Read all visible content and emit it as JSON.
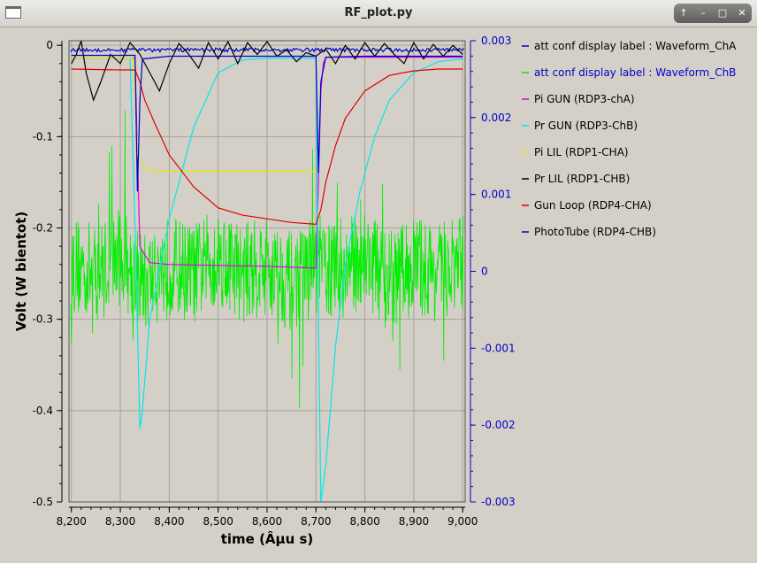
{
  "window": {
    "title": "RF_plot.py",
    "buttons": [
      "↑",
      "–",
      "□",
      "✕"
    ]
  },
  "chart_data": {
    "type": "line",
    "title": "",
    "xlabel": "time (Âµu s)",
    "ylabel": "Volt (W bientot)",
    "xlim": [
      8195,
      9005
    ],
    "ylim": [
      -0.5,
      0.005
    ],
    "y2lim": [
      -0.003,
      0.003
    ],
    "x_ticks": [
      8200,
      8300,
      8400,
      8500,
      8600,
      8700,
      8800,
      8900,
      9000
    ],
    "x_tick_labels": [
      "8,200",
      "8,300",
      "8,400",
      "8,500",
      "8,600",
      "8,700",
      "8,800",
      "8,900",
      "9,000"
    ],
    "y_ticks": [
      0,
      -0.1,
      -0.2,
      -0.3,
      -0.4,
      -0.5
    ],
    "y_tick_labels": [
      "0",
      "-0.1",
      "-0.2",
      "-0.3",
      "-0.4",
      "-0.5"
    ],
    "y2_ticks": [
      0.003,
      0.002,
      0.001,
      0,
      -0.001,
      -0.002,
      -0.003
    ],
    "y2_tick_labels": [
      "0.003",
      "0.002",
      "0.001",
      "0",
      "-0.001",
      "-0.002",
      "-0.003"
    ],
    "grid": true,
    "legend_position": "right",
    "series": [
      {
        "name": "att conf display label : Waveform_ChA",
        "color": "#0000c8",
        "axis": "right",
        "x": [
          8200,
          8300,
          8400,
          8500,
          8600,
          8700,
          8800,
          8900,
          9000
        ],
        "y": [
          0.00288,
          0.00289,
          0.00288,
          0.00289,
          0.00288,
          0.00289,
          0.00288,
          0.00289,
          0.00288
        ]
      },
      {
        "name": "att conf display label : Waveform_ChB",
        "color": "#00ee00",
        "axis": "left",
        "x": [
          8200,
          8250,
          8300,
          8350,
          8400,
          8450,
          8500,
          8550,
          8600,
          8650,
          8700,
          8750,
          8800,
          8850,
          8900,
          8950,
          9000
        ],
        "y": [
          -0.24,
          -0.25,
          -0.23,
          -0.26,
          -0.24,
          -0.25,
          -0.23,
          -0.25,
          -0.24,
          -0.26,
          -0.24,
          -0.25,
          -0.23,
          -0.26,
          -0.24,
          -0.25,
          -0.24
        ]
      },
      {
        "name": "Pi GUN (RDP3-chA)",
        "color": "#e000e0",
        "axis": "left",
        "x": [
          8200,
          8330,
          8335,
          8340,
          8345,
          8360,
          8400,
          8500,
          8600,
          8700,
          8705,
          8710,
          8715,
          8720,
          8800,
          9000
        ],
        "y": [
          -0.014,
          -0.014,
          -0.12,
          -0.22,
          -0.225,
          -0.238,
          -0.24,
          -0.241,
          -0.242,
          -0.244,
          -0.15,
          -0.05,
          -0.02,
          -0.013,
          -0.013,
          -0.013
        ]
      },
      {
        "name": "Pr GUN (RDP3-ChB)",
        "color": "#00e8e8",
        "axis": "left",
        "x": [
          8200,
          8320,
          8330,
          8340,
          8345,
          8360,
          8400,
          8450,
          8500,
          8550,
          8600,
          8650,
          8700,
          8705,
          8710,
          8720,
          8740,
          8760,
          8790,
          8820,
          8850,
          8900,
          8950,
          9000
        ],
        "y": [
          -0.014,
          -0.014,
          -0.2,
          -0.42,
          -0.4,
          -0.3,
          -0.19,
          -0.09,
          -0.03,
          -0.016,
          -0.014,
          -0.014,
          -0.014,
          -0.3,
          -0.5,
          -0.46,
          -0.33,
          -0.24,
          -0.16,
          -0.1,
          -0.06,
          -0.03,
          -0.018,
          -0.015
        ]
      },
      {
        "name": "Pi LIL (RDP1-CHA)",
        "color": "#e8e800",
        "axis": "left",
        "x": [
          8200,
          8325,
          8330,
          8335,
          8345,
          8360,
          8400,
          8500,
          8600,
          8650,
          8700
        ],
        "y": [
          -0.014,
          -0.014,
          -0.05,
          -0.12,
          -0.132,
          -0.137,
          -0.138,
          -0.138,
          -0.138,
          -0.138,
          -0.138
        ]
      },
      {
        "name": "Pr LIL (RDP1-CHB)",
        "color": "#000000",
        "axis": "left",
        "x": [
          8200,
          8210,
          8220,
          8230,
          8245,
          8260,
          8280,
          8300,
          8320,
          8340,
          8360,
          8380,
          8400,
          8420,
          8440,
          8460,
          8480,
          8500,
          8520,
          8540,
          8560,
          8580,
          8600,
          8620,
          8640,
          8660,
          8680,
          8700,
          8720,
          8740,
          8760,
          8780,
          8800,
          8820,
          8840,
          8860,
          8880,
          8900,
          8920,
          8940,
          8960,
          8980,
          9000
        ],
        "y": [
          -0.02,
          -0.01,
          0.005,
          -0.03,
          -0.06,
          -0.04,
          -0.01,
          -0.02,
          0.003,
          -0.01,
          -0.03,
          -0.05,
          -0.02,
          0.002,
          -0.01,
          -0.025,
          0.003,
          -0.015,
          0.004,
          -0.02,
          0.003,
          -0.01,
          0.004,
          -0.012,
          -0.005,
          -0.018,
          -0.008,
          -0.012,
          -0.004,
          -0.02,
          0.0,
          -0.015,
          0.003,
          -0.012,
          0.002,
          -0.01,
          -0.02,
          0.003,
          -0.015,
          0.001,
          -0.012,
          0.0,
          -0.01
        ]
      },
      {
        "name": "Gun Loop (RDP4-CHA)",
        "color": "#dd0000",
        "axis": "left",
        "x": [
          8200,
          8300,
          8330,
          8340,
          8350,
          8370,
          8400,
          8450,
          8500,
          8550,
          8600,
          8650,
          8700,
          8710,
          8720,
          8740,
          8760,
          8800,
          8850,
          8900,
          8950,
          9000
        ],
        "y": [
          -0.026,
          -0.027,
          -0.027,
          -0.04,
          -0.06,
          -0.085,
          -0.12,
          -0.155,
          -0.178,
          -0.186,
          -0.19,
          -0.194,
          -0.196,
          -0.18,
          -0.15,
          -0.11,
          -0.08,
          -0.05,
          -0.033,
          -0.028,
          -0.026,
          -0.026
        ]
      },
      {
        "name": "PhotoTube (RDP4-CHB)",
        "color": "#0000c8",
        "axis": "left",
        "x": [
          8200,
          8300,
          8330,
          8335,
          8340,
          8345,
          8400,
          8600,
          8700,
          8705,
          8710,
          8720,
          8800,
          9000
        ],
        "y": [
          -0.011,
          -0.011,
          -0.011,
          -0.16,
          -0.06,
          -0.015,
          -0.012,
          -0.012,
          -0.012,
          -0.14,
          -0.04,
          -0.013,
          -0.012,
          -0.012
        ]
      }
    ]
  }
}
